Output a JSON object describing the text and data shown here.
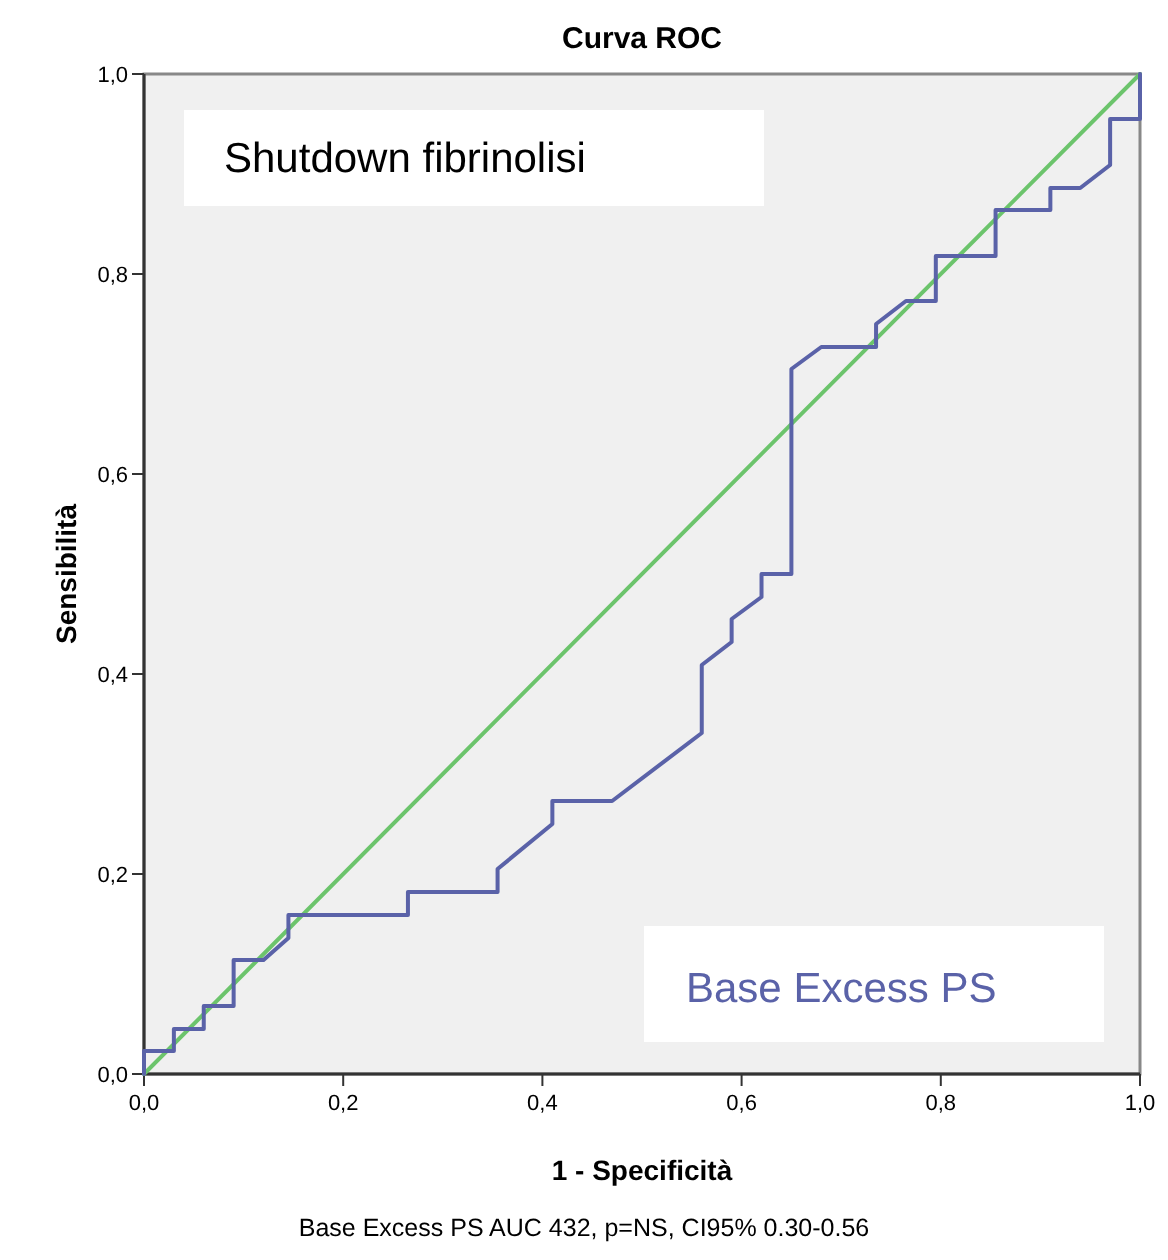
{
  "chart_data": {
    "type": "line",
    "title": "Curva ROC",
    "xlabel": "1 - Specificità",
    "ylabel": "Sensibilità",
    "xlim": [
      0,
      1
    ],
    "ylim": [
      0,
      1
    ],
    "xticks": [
      {
        "value": 0,
        "label": "0,0"
      },
      {
        "value": 0.2,
        "label": "0,2"
      },
      {
        "value": 0.4,
        "label": "0,4"
      },
      {
        "value": 0.6,
        "label": "0,6"
      },
      {
        "value": 0.8,
        "label": "0,8"
      },
      {
        "value": 1,
        "label": "1,0"
      }
    ],
    "yticks": [
      {
        "value": 0,
        "label": "0,0"
      },
      {
        "value": 0.2,
        "label": "0,2"
      },
      {
        "value": 0.4,
        "label": "0,4"
      },
      {
        "value": 0.6,
        "label": "0,6"
      },
      {
        "value": 0.8,
        "label": "0,8"
      },
      {
        "value": 1,
        "label": "1,0"
      }
    ],
    "series": [
      {
        "color": "#6cc46c",
        "x": [
          0,
          1
        ],
        "values": [
          0,
          1
        ]
      },
      {
        "name": "Base Excess PS",
        "color": "#5a62a8",
        "x": [
          0,
          0,
          0.03,
          0.03,
          0.06,
          0.06,
          0.09,
          0.09,
          0.12,
          0.145,
          0.145,
          0.265,
          0.265,
          0.355,
          0.355,
          0.41,
          0.41,
          0.47,
          0.56,
          0.56,
          0.59,
          0.59,
          0.62,
          0.62,
          0.65,
          0.65,
          0.68,
          0.735,
          0.735,
          0.765,
          0.795,
          0.795,
          0.855,
          0.855,
          0.91,
          0.91,
          0.94,
          0.97,
          0.97,
          1,
          1
        ],
        "values": [
          0,
          0.023,
          0.023,
          0.045,
          0.045,
          0.068,
          0.068,
          0.114,
          0.114,
          0.136,
          0.159,
          0.159,
          0.182,
          0.182,
          0.205,
          0.25,
          0.273,
          0.273,
          0.341,
          0.409,
          0.432,
          0.455,
          0.477,
          0.5,
          0.5,
          0.705,
          0.727,
          0.727,
          0.75,
          0.773,
          0.773,
          0.818,
          0.818,
          0.864,
          0.864,
          0.886,
          0.886,
          0.909,
          0.955,
          0.955,
          1
        ]
      }
    ],
    "annotations": [
      "Shutdown fibrinolisi",
      "Base Excess PS AUC 432, p=NS, CI95% 0.30-0.56"
    ]
  }
}
